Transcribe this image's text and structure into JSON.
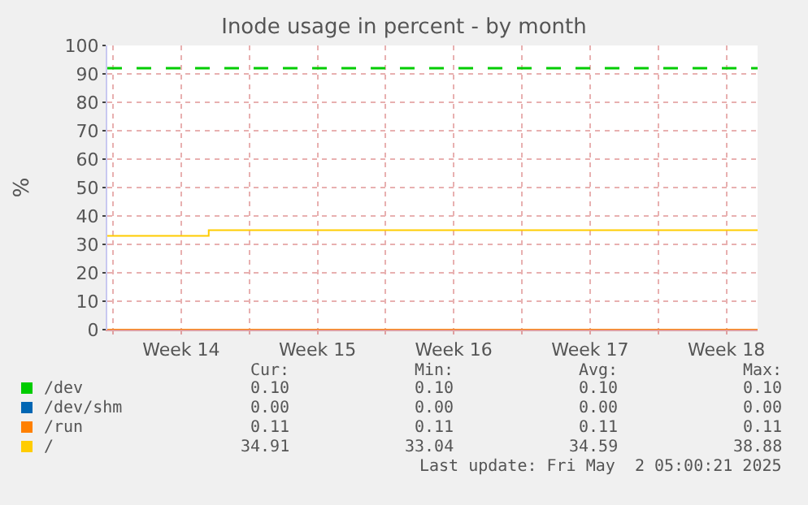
{
  "chart_data": {
    "type": "line",
    "title": "Inode usage in percent - by month",
    "ylabel": "%",
    "series": [
      {
        "name": "/dev",
        "color": "#00cc00"
      },
      {
        "name": "/dev/shm",
        "color": "#0066b3"
      },
      {
        "name": "/run",
        "color": "#ff8000",
        "x": [
          "2025-03-30T17:00",
          "2025-05-03T02:30"
        ],
        "values": [
          0,
          0
        ]
      },
      {
        "name": "/",
        "color": "#ffcc00",
        "x": [
          "2025-03-30T17:00",
          "2025-04-04T22:00",
          "2025-04-04T22:00",
          "2025-05-03T02:30"
        ],
        "values": [
          33,
          33,
          35,
          35
        ]
      }
    ],
    "ref_lines": [
      {
        "axis": "y",
        "value": 92,
        "color": "#00cc00",
        "line_style": "dashed"
      }
    ],
    "xlim": [
      "2025-03-30T17:00",
      "2025-05-03T02:30"
    ],
    "xticks": [
      {
        "value": "2025-03-31",
        "label": null
      },
      {
        "value": "2025-04-03T12:00",
        "label": "Week 14"
      },
      {
        "value": "2025-04-07",
        "label": null
      },
      {
        "value": "2025-04-10T12:00",
        "label": "Week 15"
      },
      {
        "value": "2025-04-14",
        "label": null
      },
      {
        "value": "2025-04-17T12:00",
        "label": "Week 16"
      },
      {
        "value": "2025-04-21",
        "label": null
      },
      {
        "value": "2025-04-24T12:00",
        "label": "Week 17"
      },
      {
        "value": "2025-04-28",
        "label": null
      },
      {
        "value": "2025-05-01T12:00",
        "label": "Week 18"
      }
    ],
    "ylim": [
      0,
      100
    ],
    "yticks": [
      0,
      10,
      20,
      30,
      40,
      50,
      60,
      70,
      80,
      90,
      100
    ],
    "grid": true,
    "legend": "bottom",
    "marker": "none",
    "line_style": "solid",
    "annotations": [
      "Cur:",
      "Min:",
      "Avg:",
      "Max:",
      "0.10",
      "0.10",
      "0.10",
      "0.10",
      "0.00",
      "0.00",
      "0.00",
      "0.00",
      "0.11",
      "0.11",
      "0.11",
      "0.11",
      "34.91",
      "33.04",
      "34.59",
      "38.88",
      "Last update: Fri May  2 05:00:21 2025"
    ]
  }
}
